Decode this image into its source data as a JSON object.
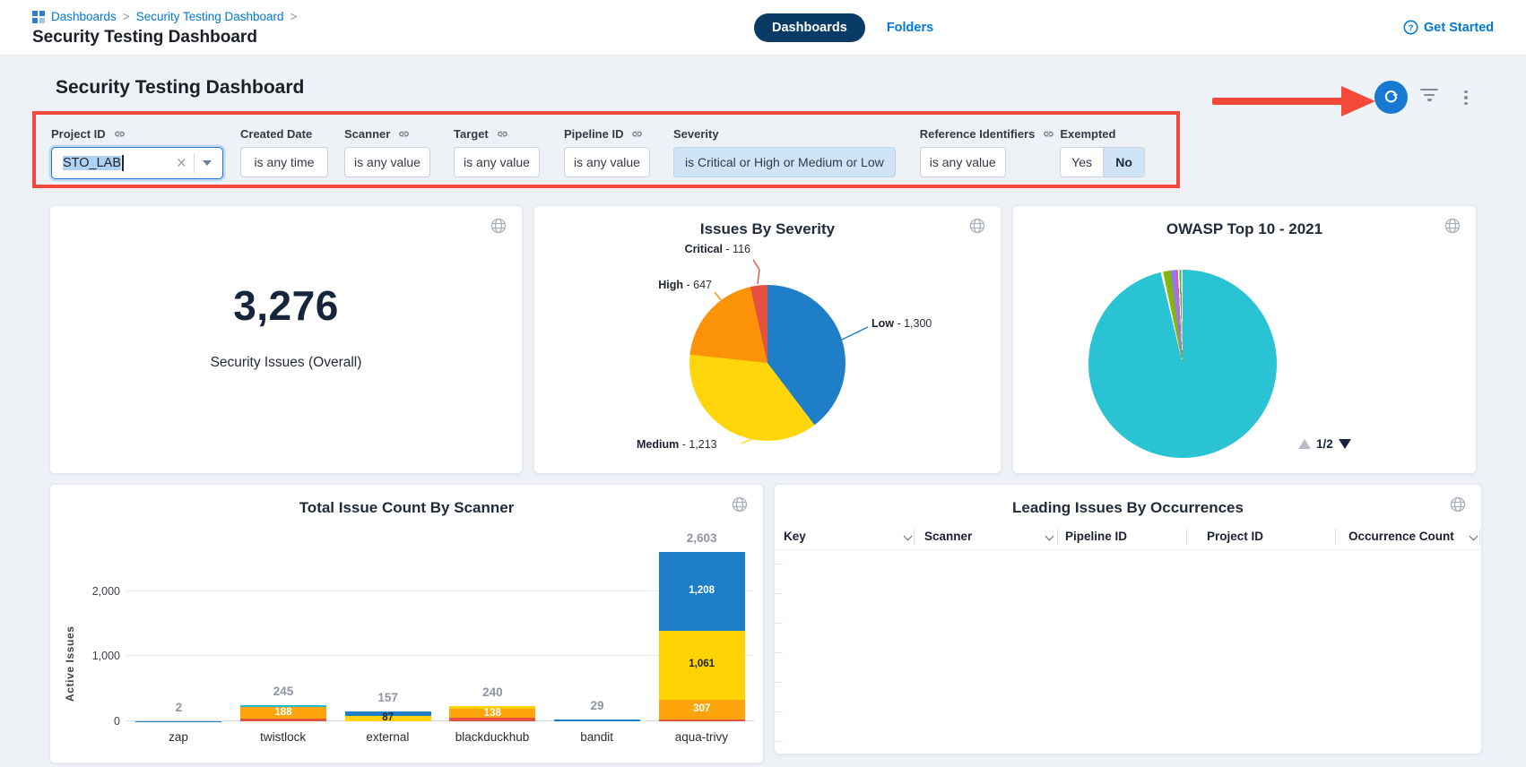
{
  "app": {
    "breadcrumb": {
      "items": [
        "Dashboards",
        "Security Testing Dashboard"
      ],
      "separator": ">"
    },
    "window_title": "Security Testing Dashboard",
    "tabs": [
      {
        "label": "Dashboards",
        "active": true
      },
      {
        "label": "Folders",
        "active": false
      }
    ],
    "help_link": "Get Started"
  },
  "dashboard": {
    "title": "Security Testing Dashboard",
    "actions": {
      "refresh": "refresh",
      "filter": "filter",
      "more": "more-options"
    }
  },
  "annotations": {
    "box_color": "#f4483b",
    "arrow_color": "#f4483b"
  },
  "filters": {
    "items": [
      {
        "id": "project-id",
        "label": "Project ID",
        "link_icon": true,
        "type": "input",
        "value": "STO_LAB"
      },
      {
        "id": "created-date",
        "label": "Created Date",
        "link_icon": false,
        "type": "chip",
        "value": "is any time"
      },
      {
        "id": "scanner",
        "label": "Scanner",
        "link_icon": true,
        "type": "chip",
        "value": "is any value"
      },
      {
        "id": "target",
        "label": "Target",
        "link_icon": true,
        "type": "chip",
        "value": "is any value"
      },
      {
        "id": "pipeline-id",
        "label": "Pipeline ID",
        "link_icon": true,
        "type": "chip",
        "value": "is any value"
      },
      {
        "id": "severity",
        "label": "Severity",
        "link_icon": false,
        "type": "chip-active",
        "value": "is Critical or High or Medium or Low"
      },
      {
        "id": "reference-identifiers",
        "label": "Reference Identifiers",
        "link_icon": true,
        "type": "chip",
        "value": "is any value"
      },
      {
        "id": "exempted",
        "label": "Exempted",
        "link_icon": false,
        "type": "toggle",
        "options": [
          "Yes",
          "No"
        ],
        "selected": "No"
      }
    ]
  },
  "chart_data": [
    {
      "type": "stat",
      "title": "Security Issues (Overall)",
      "value": 3276,
      "display": "3,276"
    },
    {
      "type": "pie",
      "title": "Issues By Severity",
      "slices": [
        {
          "label": "Low",
          "value": 1300,
          "display": "1,300",
          "color": "#1e7ec8",
          "label_pos": [
            376,
            124
          ],
          "leader": [
            [
              372,
              135
            ],
            [
              343,
              149
            ]
          ]
        },
        {
          "label": "Medium",
          "value": 1213,
          "display": "1,213",
          "color": "#ffd60b",
          "label_pos": [
            114,
            259
          ],
          "leader": [
            [
              231,
              265
            ],
            [
              245,
              259
            ],
            [
              221,
              251
            ]
          ]
        },
        {
          "label": "High",
          "value": 647,
          "display": "647",
          "color": "#fc9208",
          "label_pos": [
            100,
            81,
            98
          ],
          "leader": [
            [
              201,
              96
            ],
            [
              210,
              107
            ],
            [
              196,
              117
            ]
          ]
        },
        {
          "label": "Critical",
          "value": 116,
          "display": "116",
          "color": "#e65240",
          "label_pos": [
            146,
            41,
            95
          ],
          "leader": [
            [
              244,
              60
            ],
            [
              251,
              71
            ],
            [
              249,
              87
            ]
          ]
        }
      ],
      "start": "12 o'clock, clockwise: Low, Medium, High, Critical"
    },
    {
      "type": "pie",
      "title": "OWASP Top 10 - 2021",
      "labels_visible": false,
      "slices": [
        {
          "label": "segment-1",
          "percent": 96.3,
          "color": "#2ac3d4",
          "deg": [
            0,
            346.5
          ]
        },
        {
          "label": "segment-2",
          "percent": 1.3,
          "color": "#82b60a",
          "deg": [
            348,
            352.6
          ]
        },
        {
          "label": "segment-3",
          "percent": 1.0,
          "color": "#9678ee",
          "deg": [
            352.6,
            356.1
          ]
        },
        {
          "label": "segment-4",
          "percent": 0.3,
          "color": "#fb4d8e",
          "deg": [
            356.1,
            357.1
          ]
        },
        {
          "label": "segment-5",
          "percent": 0.3,
          "color": "#3cb848",
          "deg": [
            358,
            359.1
          ]
        }
      ],
      "pagination": {
        "current": 1,
        "total": 2,
        "display": "1/2",
        "up_enabled": false,
        "down_enabled": true
      }
    },
    {
      "type": "stacked-bar",
      "title": "Total Issue Count By Scanner",
      "ylabel": "Active Issues",
      "yticks": [
        {
          "v": 0,
          "label": "0"
        },
        {
          "v": 1000,
          "label": "1,000"
        },
        {
          "v": 2000,
          "label": "2,000"
        }
      ],
      "ymax": 2890,
      "grid": true,
      "categories": [
        "zap",
        "twistlock",
        "external",
        "blackduckhub",
        "bandit",
        "aqua-trivy"
      ],
      "totals": [
        "2",
        "245",
        "157",
        "240",
        "29",
        "2,603"
      ],
      "bars": [
        [
          {
            "color": "#1e7ec8",
            "value": 2
          }
        ],
        [
          {
            "color": "#22b8cf",
            "value": 20
          },
          {
            "color": "#ffa40a",
            "value": 188,
            "label": "188",
            "label_color": "#ffffff"
          },
          {
            "color": "#e65240",
            "value": 37
          }
        ],
        [
          {
            "color": "#1e7ec8",
            "value": 70
          },
          {
            "color": "#ffd303",
            "value": 87,
            "label": "87",
            "label_color": "#1c2230"
          }
        ],
        [
          {
            "color": "#ffd303",
            "value": 51
          },
          {
            "color": "#ffa40a",
            "value": 138,
            "label": "138",
            "label_color": "#ffffff"
          },
          {
            "color": "#e65240",
            "value": 51
          }
        ],
        [
          {
            "color": "#1e7ec8",
            "value": 29
          }
        ],
        [
          {
            "color": "#1e7ec8",
            "value": 1208,
            "label": "1,208",
            "label_color": "#ffffff"
          },
          {
            "color": "#ffd303",
            "value": 1061,
            "label": "1,061",
            "label_color": "#1c2230"
          },
          {
            "color": "#ffa40a",
            "value": 307,
            "label": "307",
            "label_color": "#ffffff"
          },
          {
            "color": "#e65240",
            "value": 27
          }
        ]
      ]
    },
    {
      "type": "table",
      "title": "Leading Issues By Occurrences",
      "columns": [
        {
          "label": "Key",
          "sortable": true
        },
        {
          "label": "Scanner",
          "sortable": true
        },
        {
          "label": "Pipeline ID",
          "sortable": false
        },
        {
          "label": "Project ID",
          "sortable": false
        },
        {
          "label": "Occurrence Count",
          "sortable": true
        }
      ],
      "rows": []
    }
  ]
}
